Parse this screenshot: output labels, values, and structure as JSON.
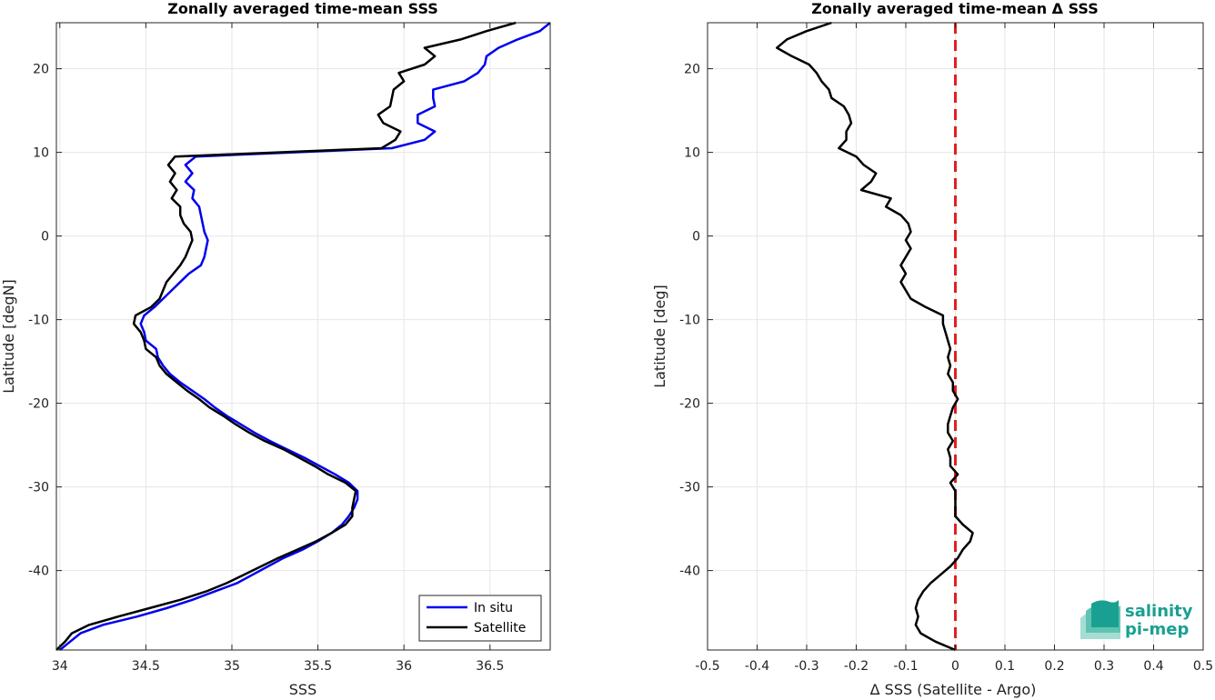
{
  "chart_data": [
    {
      "type": "line",
      "title": "Zonally averaged time-mean SSS",
      "xlabel": "SSS",
      "ylabel": "Latitude [degN]",
      "xlim": [
        33.98,
        36.85
      ],
      "ylim": [
        -49.5,
        25.5
      ],
      "xticks": [
        34,
        34.5,
        35,
        35.5,
        36,
        36.5
      ],
      "yticks": [
        -40,
        -30,
        -20,
        -10,
        0,
        10,
        20
      ],
      "grid": true,
      "legend": "bottom-right",
      "series": [
        {
          "name": "In situ",
          "color": "#0000ee",
          "lat": [
            -49.5,
            -48.5,
            -47.5,
            -46.5,
            -45.5,
            -44.5,
            -43.5,
            -42.5,
            -41.5,
            -40.5,
            -39.5,
            -38.5,
            -37.5,
            -36.5,
            -35.5,
            -34.5,
            -33.5,
            -32.5,
            -31.5,
            -30.5,
            -29.5,
            -28.5,
            -27.5,
            -26.5,
            -25.5,
            -24.5,
            -23.5,
            -22.5,
            -21.5,
            -20.5,
            -19.5,
            -18.5,
            -17.5,
            -16.5,
            -15.5,
            -14.5,
            -13.5,
            -12.5,
            -11.5,
            -10.5,
            -9.5,
            -8.5,
            -7.5,
            -6.5,
            -5.5,
            -4.5,
            -3.5,
            -2.5,
            -1.5,
            -0.5,
            0.5,
            1.5,
            2.5,
            3.5,
            4.5,
            5.5,
            6.5,
            7.5,
            8.5,
            9.5,
            10.5,
            11.5,
            12.5,
            13.5,
            14.5,
            15.5,
            16.5,
            17.5,
            18.5,
            19.5,
            20.5,
            21.5,
            22.5,
            23.5,
            24.5,
            25.5
          ],
          "values": [
            34.0,
            34.06,
            34.12,
            34.25,
            34.45,
            34.62,
            34.77,
            34.9,
            35.03,
            35.12,
            35.21,
            35.3,
            35.41,
            35.5,
            35.58,
            35.64,
            35.68,
            35.71,
            35.73,
            35.73,
            35.68,
            35.6,
            35.51,
            35.42,
            35.32,
            35.22,
            35.13,
            35.05,
            34.97,
            34.9,
            34.84,
            34.77,
            34.7,
            34.64,
            34.6,
            34.57,
            34.56,
            34.5,
            34.49,
            34.47,
            34.49,
            34.55,
            34.6,
            34.65,
            34.7,
            34.75,
            34.82,
            34.84,
            34.85,
            34.86,
            34.84,
            34.83,
            34.82,
            34.81,
            34.77,
            34.78,
            34.73,
            34.77,
            34.73,
            34.79,
            35.93,
            36.12,
            36.18,
            36.08,
            36.08,
            36.18,
            36.17,
            36.17,
            36.35,
            36.43,
            36.47,
            36.48,
            36.55,
            36.66,
            36.79,
            36.85
          ]
        },
        {
          "name": "Satellite",
          "color": "#000000",
          "lat": [
            -49.5,
            -48.5,
            -47.5,
            -46.5,
            -45.5,
            -44.5,
            -43.5,
            -42.5,
            -41.5,
            -40.5,
            -39.5,
            -38.5,
            -37.5,
            -36.5,
            -35.5,
            -34.5,
            -33.5,
            -32.5,
            -31.5,
            -30.5,
            -29.5,
            -28.5,
            -27.5,
            -26.5,
            -25.5,
            -24.5,
            -23.5,
            -22.5,
            -21.5,
            -20.5,
            -19.5,
            -18.5,
            -17.5,
            -16.5,
            -15.5,
            -14.5,
            -13.5,
            -12.5,
            -11.5,
            -10.5,
            -9.5,
            -8.5,
            -7.5,
            -6.5,
            -5.5,
            -4.5,
            -3.5,
            -2.5,
            -1.5,
            -0.5,
            0.5,
            1.5,
            2.5,
            3.5,
            4.5,
            5.5,
            6.5,
            7.5,
            8.5,
            9.5,
            10.5,
            11.5,
            12.5,
            13.5,
            14.5,
            15.5,
            16.5,
            17.5,
            18.5,
            19.5,
            20.5,
            21.5,
            22.5,
            23.5,
            24.5,
            25.5
          ],
          "values": [
            33.98,
            34.03,
            34.07,
            34.17,
            34.34,
            34.52,
            34.7,
            34.85,
            34.97,
            35.07,
            35.17,
            35.27,
            35.38,
            35.49,
            35.58,
            35.66,
            35.7,
            35.7,
            35.71,
            35.72,
            35.66,
            35.56,
            35.48,
            35.39,
            35.3,
            35.19,
            35.1,
            35.02,
            34.95,
            34.87,
            34.81,
            34.74,
            34.68,
            34.62,
            34.58,
            34.56,
            34.5,
            34.49,
            34.47,
            34.43,
            34.44,
            34.53,
            34.58,
            34.6,
            34.62,
            34.66,
            34.7,
            34.73,
            34.75,
            34.77,
            34.76,
            34.72,
            34.7,
            34.7,
            34.65,
            34.68,
            34.64,
            34.67,
            34.63,
            34.67,
            35.87,
            35.95,
            35.98,
            35.88,
            35.85,
            35.92,
            35.93,
            35.94,
            36.0,
            35.97,
            36.12,
            36.18,
            36.12,
            36.33,
            36.48,
            36.65
          ]
        }
      ]
    },
    {
      "type": "line",
      "title": "Zonally averaged time-mean Δ SSS",
      "xlabel": "Δ SSS (Satellite - Argo)",
      "ylabel": "Latitude [deg]",
      "xlim": [
        -0.5,
        0.5
      ],
      "ylim": [
        -49.5,
        25.5
      ],
      "xticks": [
        -0.5,
        -0.4,
        -0.3,
        -0.2,
        -0.1,
        0,
        0.1,
        0.2,
        0.3,
        0.4,
        0.5
      ],
      "xtick_labels": [
        "-0.5",
        "-0.4",
        "-0.3",
        "-0.2",
        "-0.1",
        "0",
        "0.1",
        "0.2",
        "0.3",
        "0.4",
        "0.5"
      ],
      "yticks": [
        -40,
        -30,
        -20,
        -10,
        0,
        10,
        20
      ],
      "grid": true,
      "reference_line": {
        "x": 0,
        "color": "#e02020",
        "style": "dashed"
      },
      "series": [
        {
          "color": "#000000",
          "lat": [
            -49.5,
            -48.5,
            -47.5,
            -46.5,
            -45.5,
            -44.5,
            -43.5,
            -42.5,
            -41.5,
            -40.5,
            -39.5,
            -38.5,
            -37.5,
            -36.5,
            -35.5,
            -34.5,
            -33.5,
            -32.5,
            -31.5,
            -30.5,
            -29.5,
            -28.5,
            -27.5,
            -26.5,
            -25.5,
            -24.5,
            -23.5,
            -22.5,
            -21.5,
            -20.5,
            -19.5,
            -18.5,
            -17.5,
            -16.5,
            -15.5,
            -14.5,
            -13.5,
            -12.5,
            -11.5,
            -10.5,
            -9.5,
            -8.5,
            -7.5,
            -6.5,
            -5.5,
            -4.5,
            -3.5,
            -2.5,
            -1.5,
            -0.5,
            0.5,
            1.5,
            2.5,
            3.5,
            4.5,
            5.5,
            6.5,
            7.5,
            8.5,
            9.5,
            10.5,
            11.5,
            12.5,
            13.5,
            14.5,
            15.5,
            16.5,
            17.5,
            18.5,
            19.5,
            20.5,
            21.5,
            22.5,
            23.5,
            24.5,
            25.5
          ],
          "values": [
            0.0,
            -0.04,
            -0.07,
            -0.08,
            -0.075,
            -0.08,
            -0.075,
            -0.065,
            -0.05,
            -0.03,
            -0.01,
            0.005,
            0.015,
            0.03,
            0.035,
            0.015,
            0.0,
            0.0,
            0.0,
            0.0,
            -0.01,
            0.005,
            -0.01,
            -0.01,
            -0.015,
            -0.005,
            -0.015,
            -0.015,
            -0.01,
            -0.005,
            0.005,
            -0.005,
            -0.005,
            -0.015,
            -0.01,
            -0.015,
            -0.01,
            -0.015,
            -0.02,
            -0.025,
            -0.025,
            -0.06,
            -0.09,
            -0.1,
            -0.11,
            -0.1,
            -0.11,
            -0.1,
            -0.09,
            -0.1,
            -0.09,
            -0.095,
            -0.11,
            -0.14,
            -0.13,
            -0.19,
            -0.17,
            -0.16,
            -0.185,
            -0.2,
            -0.235,
            -0.22,
            -0.22,
            -0.21,
            -0.215,
            -0.225,
            -0.25,
            -0.255,
            -0.27,
            -0.28,
            -0.295,
            -0.33,
            -0.36,
            -0.34,
            -0.3,
            -0.25
          ]
        }
      ]
    }
  ],
  "logo": {
    "line1": "salinity",
    "line2": "pi-mep",
    "color": "#1aa090"
  }
}
